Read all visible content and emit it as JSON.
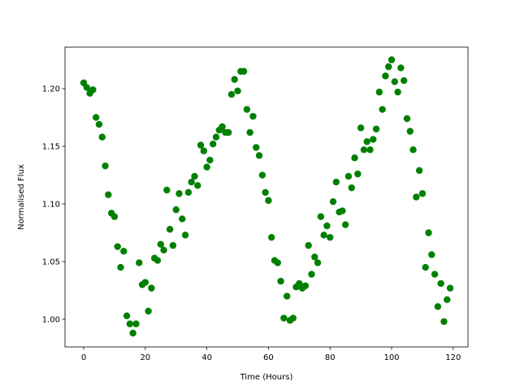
{
  "chart_data": {
    "type": "scatter",
    "x_label": "Time (Hours)",
    "y_label": "Normalised Flux",
    "xlim": [
      -6.07,
      124.8
    ],
    "ylim": [
      0.976,
      1.236
    ],
    "xticks": [
      0,
      20,
      40,
      60,
      80,
      100,
      120
    ],
    "yticks": [
      {
        "value": 1.0,
        "label": "1.00"
      },
      1.05,
      {
        "value": 1.1,
        "label": "1.10"
      },
      1.15,
      {
        "value": 1.2,
        "label": "1.20"
      }
    ],
    "series": [
      {
        "color": "#008000",
        "x": [
          0,
          1,
          2,
          3,
          4,
          5,
          6,
          7,
          8,
          9,
          10,
          11,
          12,
          13,
          14,
          15,
          16,
          17,
          18,
          19,
          20,
          21,
          22,
          23,
          24,
          25,
          26,
          27,
          28,
          29,
          30,
          31,
          32,
          33,
          34,
          35,
          36,
          37,
          38,
          39,
          40,
          41,
          42,
          43,
          44,
          45,
          46,
          47,
          48,
          49,
          50,
          51,
          52,
          53,
          54,
          55,
          56,
          57,
          58,
          59,
          60,
          61,
          62,
          63,
          64,
          65,
          66,
          67,
          68,
          69,
          70,
          71,
          72,
          73,
          74,
          75,
          76,
          77,
          78,
          79,
          80,
          81,
          82,
          83,
          84,
          85,
          86,
          87,
          88,
          89,
          90,
          91,
          92,
          93,
          94,
          95,
          96,
          97,
          98,
          99,
          100,
          101,
          102,
          103,
          104,
          105,
          106,
          107,
          108,
          109,
          110,
          111,
          112,
          113,
          114,
          115,
          116,
          117,
          118,
          119
        ],
        "values": [
          1.205,
          1.201,
          1.196,
          1.199,
          1.175,
          1.169,
          1.158,
          1.133,
          1.108,
          1.092,
          1.089,
          1.063,
          1.045,
          1.059,
          1.003,
          0.996,
          0.988,
          0.996,
          1.049,
          1.03,
          1.032,
          1.007,
          1.027,
          1.053,
          1.051,
          1.065,
          1.06,
          1.112,
          1.078,
          1.064,
          1.095,
          1.109,
          1.087,
          1.073,
          1.11,
          1.119,
          1.124,
          1.116,
          1.151,
          1.146,
          1.132,
          1.138,
          1.152,
          1.158,
          1.164,
          1.167,
          1.162,
          1.162,
          1.195,
          1.208,
          1.198,
          1.215,
          1.215,
          1.182,
          1.162,
          1.176,
          1.149,
          1.142,
          1.125,
          1.11,
          1.103,
          1.071,
          1.051,
          1.049,
          1.033,
          1.001,
          1.02,
          0.999,
          1.001,
          1.028,
          1.031,
          1.027,
          1.029,
          1.064,
          1.039,
          1.054,
          1.049,
          1.089,
          1.073,
          1.081,
          1.071,
          1.102,
          1.119,
          1.093,
          1.094,
          1.082,
          1.124,
          1.114,
          1.14,
          1.126,
          1.166,
          1.147,
          1.154,
          1.147,
          1.156,
          1.165,
          1.197,
          1.182,
          1.211,
          1.219,
          1.225,
          1.206,
          1.197,
          1.218,
          1.207,
          1.174,
          1.163,
          1.147,
          1.106,
          1.129,
          1.109,
          1.045,
          1.075,
          1.056,
          1.039,
          1.011,
          1.031,
          0.998,
          1.017,
          1.027
        ]
      }
    ]
  }
}
